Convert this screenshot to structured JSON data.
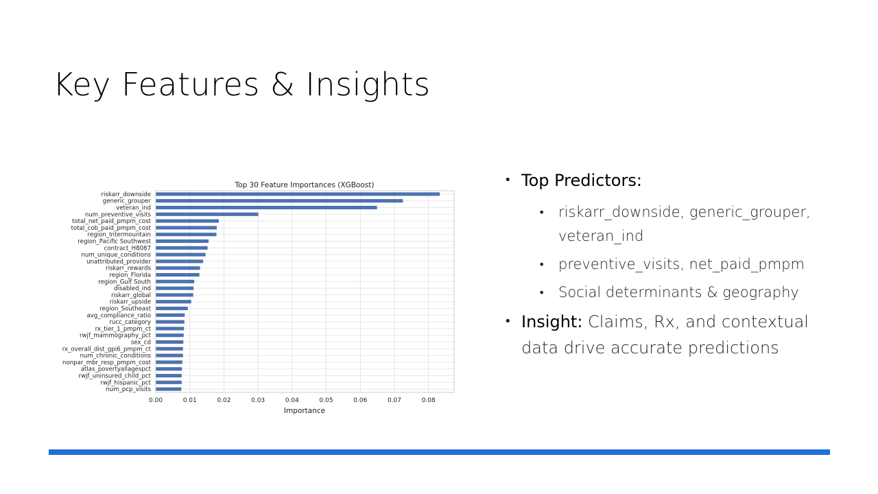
{
  "slide": {
    "title": "Key Features & Insights",
    "accent_color": "#1f6fd6"
  },
  "bullets": {
    "top_predictors_label": "Top Predictors:",
    "sub_items": [
      "riskarr_downside, generic_grouper, veteran_ind",
      "preventive_visits, net_paid_pmpm",
      "Social determinants & geography"
    ],
    "insight_label": "Insight:",
    "insight_text": " Claims, Rx, and contextual data drive accurate predictions"
  },
  "chart_data": {
    "type": "bar",
    "orientation": "horizontal",
    "title": "Top 30 Feature Importances (XGBoost)",
    "xlabel": "Importance",
    "ylabel": "",
    "xlim": [
      0,
      0.0875
    ],
    "xticks": [
      "0.00",
      "0.01",
      "0.02",
      "0.03",
      "0.04",
      "0.05",
      "0.06",
      "0.07",
      "0.08"
    ],
    "grid": true,
    "bar_color": "#4c72b0",
    "categories": [
      "riskarr_downside",
      "generic_grouper",
      "veteran_ind",
      "num_preventive_visits",
      "total_net_paid_pmpm_cost",
      "total_cob_paid_pmpm_cost",
      "region_Intermountain",
      "region_Pacific Southwest",
      "contract_H8087",
      "num_unique_conditions",
      "unattributed_provider",
      "riskarr_rewards",
      "region_Florida",
      "region_Gulf South",
      "disabled_ind",
      "riskarr_global",
      "riskarr_upside",
      "region_Southeast",
      "avg_compliance_ratio",
      "rucc_category",
      "rx_tier_1_pmpm_ct",
      "rwjf_mammography_pct",
      "sex_cd",
      "rx_overall_dist_gpi6_pmpm_ct",
      "num_chronic_conditions",
      "nonpar_mbr_resp_pmpm_cost",
      "atlas_povertyallagespct",
      "rwjf_uninsured_child_pct",
      "rwjf_hispanic_pct",
      "num_pcp_visits"
    ],
    "values": [
      0.0833,
      0.0725,
      0.0649,
      0.0301,
      0.0185,
      0.0179,
      0.0178,
      0.0155,
      0.0152,
      0.0146,
      0.0139,
      0.013,
      0.0128,
      0.0113,
      0.0111,
      0.011,
      0.0104,
      0.0094,
      0.0085,
      0.0084,
      0.0083,
      0.0082,
      0.0081,
      0.008,
      0.008,
      0.0078,
      0.0077,
      0.0076,
      0.0076,
      0.0075
    ]
  }
}
